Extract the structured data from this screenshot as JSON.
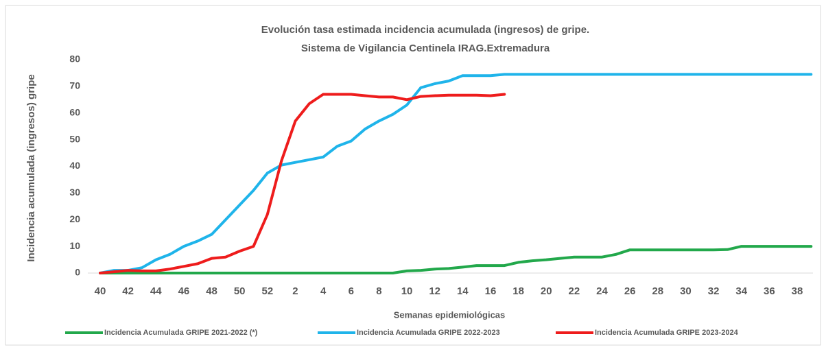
{
  "chart_data": {
    "type": "line",
    "title": "Evolución tasa estimada incidencia acumulada (ingresos) de gripe.",
    "subtitle": "Sistema de Vigilancia Centinela IRAG.Extremadura",
    "x_label": "Semanas epidemiológicas",
    "y_label": "Incidencia acumulada (ingresos) gripe",
    "categories": [
      40,
      null,
      42,
      null,
      44,
      null,
      46,
      null,
      48,
      null,
      50,
      null,
      52,
      null,
      2,
      null,
      4,
      null,
      6,
      null,
      8,
      null,
      10,
      null,
      12,
      null,
      14,
      null,
      16,
      null,
      18,
      null,
      20,
      null,
      22,
      null,
      24,
      null,
      26,
      null,
      28,
      null,
      30,
      null,
      32,
      null,
      34,
      null,
      36,
      null,
      38,
      null
    ],
    "series": [
      {
        "name": "Incidencia Acumulada GRIPE 2021-2022 (*)",
        "color": "#22a84b",
        "values": [
          0,
          0,
          0,
          0,
          0,
          0,
          0,
          0,
          0,
          0,
          0,
          0,
          0,
          0,
          0,
          0,
          0,
          0,
          0,
          0,
          0,
          0,
          0.8,
          1,
          1.5,
          1.7,
          2.2,
          2.8,
          2.8,
          2.8,
          4,
          4.6,
          5,
          5.5,
          6,
          6,
          6,
          7,
          8.7,
          8.7,
          8.7,
          8.7,
          8.7,
          8.7,
          8.7,
          8.8,
          10,
          10,
          10,
          10,
          10,
          10
        ]
      },
      {
        "name": "Incidencia Acumulada GRIPE 2022-2023",
        "color": "#1fb4ea",
        "values": [
          0,
          1,
          1,
          2,
          5,
          7,
          10,
          12,
          14.5,
          20,
          25.5,
          31,
          37.5,
          40.5,
          41.5,
          42.5,
          43.5,
          47.5,
          49.5,
          54,
          57,
          59.5,
          63,
          69.5,
          71,
          72,
          74,
          74,
          74,
          74.5,
          74.5,
          74.5,
          74.5,
          74.5,
          74.5,
          74.5,
          74.5,
          74.5,
          74.5,
          74.5,
          74.5,
          74.5,
          74.5,
          74.5,
          74.5,
          74.5,
          74.5,
          74.5,
          74.5,
          74.5,
          74.5,
          74.5
        ]
      },
      {
        "name": "Incidencia Acumulada GRIPE 2023-2024",
        "color": "#ee1c1c",
        "values": [
          0,
          0.5,
          1,
          0.8,
          0.8,
          1.5,
          2.5,
          3.5,
          5.5,
          6,
          8.2,
          10,
          22,
          42,
          57,
          63.5,
          67,
          67,
          67,
          66.5,
          66,
          66,
          65,
          66.2,
          66.5,
          66.7,
          66.7,
          66.7,
          66.5,
          67,
          null,
          null,
          null,
          null,
          null,
          null,
          null,
          null,
          null,
          null,
          null,
          null,
          null,
          null,
          null,
          null,
          null,
          null,
          null,
          null,
          null,
          null
        ]
      }
    ],
    "ylim": [
      0,
      80
    ],
    "yticks": [
      0,
      10,
      20,
      30,
      40,
      50,
      60,
      70,
      80
    ],
    "grid": false
  }
}
